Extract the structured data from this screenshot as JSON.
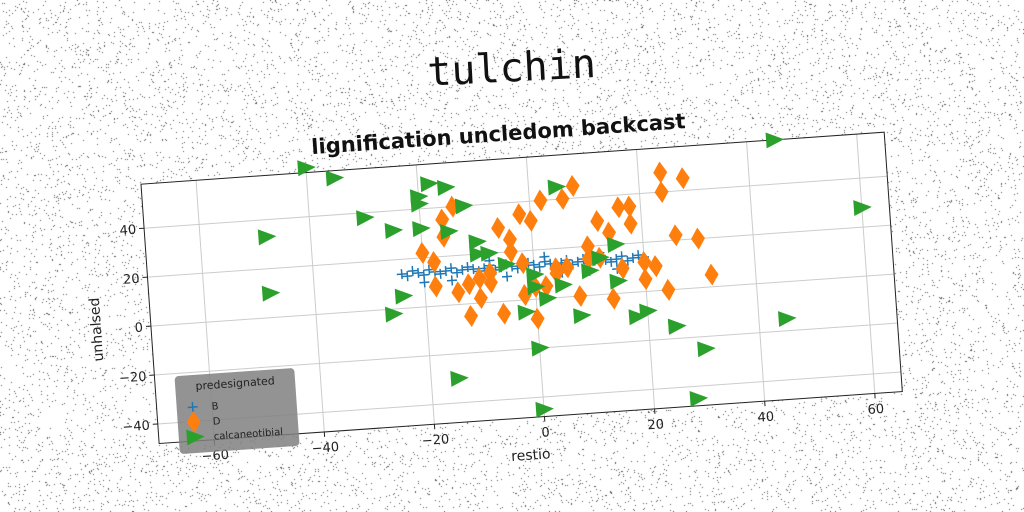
{
  "suptitle": "tulchin",
  "chart_data": {
    "type": "scatter",
    "title": "lignification uncledom backcast",
    "xlabel": "restio",
    "ylabel": "unhalsed",
    "xlim": [
      -70,
      65
    ],
    "ylim": [
      -48,
      58
    ],
    "xticks": [
      -60,
      -40,
      -20,
      0,
      20,
      40,
      60
    ],
    "xtick_labels": [
      "−60",
      "−40",
      "−20",
      "0",
      "20",
      "40",
      "60"
    ],
    "yticks": [
      -40,
      -20,
      0,
      20,
      40
    ],
    "ytick_labels": [
      "−40",
      "−20",
      "0",
      "20",
      "40"
    ],
    "grid": true,
    "legend": {
      "title": "predesignated",
      "placement": "lower-left"
    },
    "colors": {
      "B": "#1f77b4",
      "D": "#ff7f0e",
      "calcaneotibial": "#2ca02c"
    },
    "series": [
      {
        "name": "B",
        "marker": "plus",
        "x": [
          -24,
          -23,
          -22,
          -21,
          -20,
          -19,
          -18,
          -17,
          -16,
          -15,
          -14,
          -13,
          -12,
          -11,
          -10,
          -9,
          -8,
          -7,
          -6,
          -5,
          -4,
          -3,
          -2,
          -1,
          0,
          1,
          2,
          3,
          4,
          5,
          6,
          7,
          8,
          9,
          10,
          11,
          12,
          13,
          14,
          15,
          16,
          17,
          18,
          19,
          20,
          -20,
          -15,
          -10,
          -5,
          0,
          5,
          10,
          15,
          -18,
          -8,
          2,
          12
        ],
        "y": [
          14,
          13,
          15,
          14,
          13,
          15,
          14,
          13,
          14,
          15,
          13,
          14,
          15,
          14,
          13,
          14,
          15,
          13,
          14,
          15,
          14,
          13,
          14,
          15,
          14,
          13,
          15,
          14,
          13,
          14,
          15,
          13,
          14,
          15,
          13,
          14,
          15,
          14,
          13,
          14,
          15,
          13,
          14,
          15,
          14,
          10,
          10,
          10,
          10,
          10,
          10,
          10,
          10,
          17,
          17,
          17,
          17
        ]
      },
      {
        "name": "D",
        "marker": "diamond",
        "x": [
          -20,
          -18,
          -16,
          -14,
          -12,
          -10,
          -8,
          -6,
          -4,
          -2,
          0,
          2,
          4,
          6,
          8,
          10,
          12,
          14,
          16,
          18,
          20,
          22,
          24,
          26,
          28,
          30,
          32,
          -18,
          -14,
          -10,
          -6,
          -2,
          2,
          6,
          10,
          14,
          18,
          22,
          24,
          -12,
          -8,
          -4,
          0,
          4,
          8,
          12,
          16,
          20,
          24,
          -16,
          0,
          -2
        ],
        "y": [
          22,
          18,
          35,
          40,
          8,
          2,
          12,
          30,
          25,
          35,
          32,
          40,
          12,
          40,
          45,
          15,
          30,
          25,
          35,
          35,
          5,
          10,
          40,
          22,
          45,
          20,
          5,
          8,
          5,
          10,
          -5,
          15,
          5,
          12,
          20,
          -2,
          28,
          10,
          0,
          -5,
          8,
          20,
          5,
          10,
          0,
          15,
          10,
          12,
          48,
          28,
          -8,
          2
        ]
      },
      {
        "name": "calcaneotibial",
        "marker": "triangle-right",
        "x": [
          -40,
          -35,
          -48,
          -48,
          -25,
          -20,
          -18,
          -15,
          -12,
          -20,
          -24,
          -26,
          -20,
          -15,
          -10,
          -8,
          -5,
          -2,
          0,
          2,
          5,
          8,
          10,
          12,
          15,
          18,
          20,
          25,
          30,
          45,
          45,
          60,
          28,
          25,
          15,
          5,
          0,
          0,
          0,
          -15,
          -10,
          -30
        ],
        "y": [
          60,
          55,
          33,
          10,
          32,
          32,
          50,
          48,
          40,
          42,
          5,
          -2,
          45,
          30,
          25,
          20,
          15,
          -5,
          5,
          0,
          5,
          -8,
          10,
          15,
          5,
          -10,
          -8,
          -15,
          -25,
          -15,
          58,
          28,
          -45,
          -15,
          20,
          45,
          -20,
          -45,
          10,
          -30,
          20,
          38
        ]
      }
    ]
  }
}
